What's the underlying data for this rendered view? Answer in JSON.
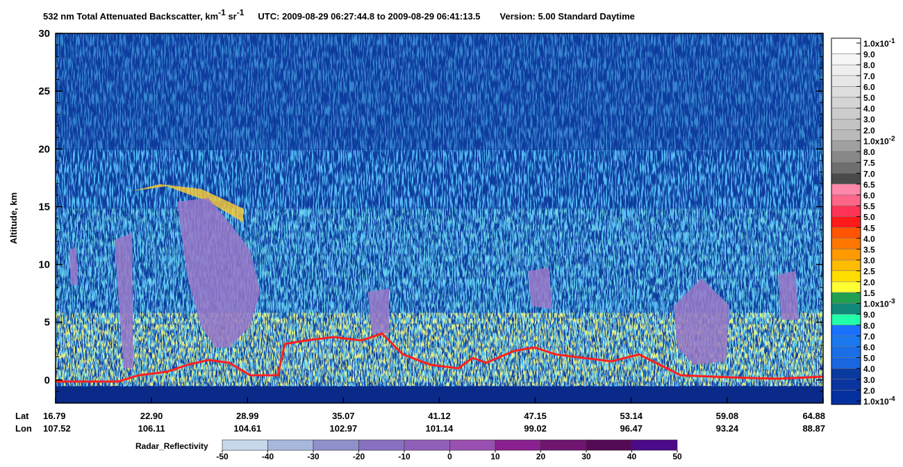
{
  "chart_data": {
    "type": "heatmap",
    "title": {
      "product": "532 nm Total Attenuated Backscatter, km",
      "unit_exp1": "-1",
      "unit2": " sr",
      "unit_exp2": "-1",
      "utc": "UTC:  2009-08-29 06:27:44.8  to  2009-08-29 06:41:13.5",
      "version": "Version: 5.00  Standard  Daytime"
    },
    "y_label": "Altitude, km",
    "ylim": [
      -2,
      30
    ],
    "yticks": [
      0,
      5,
      10,
      15,
      20,
      25,
      30
    ],
    "lat_label": "Lat",
    "lon_label": "Lon",
    "lat": [
      "16.79",
      "22.90",
      "28.99",
      "35.07",
      "41.12",
      "47.15",
      "53.14",
      "59.08",
      "64.88"
    ],
    "lon": [
      "107.52",
      "106.11",
      "104.61",
      "102.97",
      "101.14",
      "99.02",
      "96.47",
      "93.24",
      "88.87"
    ],
    "colorbar": {
      "labels": [
        {
          "label": "1.0x10",
          "exp": "-1"
        },
        "9.0",
        "8.0",
        "7.0",
        "6.0",
        "5.0",
        "4.0",
        "3.0",
        "2.0",
        {
          "label": "1.0x10",
          "exp": "-2"
        },
        "8.0",
        "7.5",
        "7.0",
        "6.5",
        "6.0",
        "5.5",
        "5.0",
        "4.5",
        "4.0",
        "3.5",
        "3.0",
        "2.5",
        "2.0",
        "1.5",
        {
          "label": "1.0x10",
          "exp": "-3"
        },
        "9.0",
        "8.0",
        "7.0",
        "6.0",
        "5.0",
        "4.0",
        "3.0",
        "2.0",
        {
          "label": "1.0x10",
          "exp": "-4"
        }
      ],
      "colors": [
        "#ffffff",
        "#f6f6f6",
        "#eeeeee",
        "#e6e6e6",
        "#dddddd",
        "#d4d4d4",
        "#cccccc",
        "#c3c3c3",
        "#bababa",
        "#a0a0a0",
        "#888888",
        "#6e6e6e",
        "#4a4a4a",
        "#ff88aa",
        "#ff6688",
        "#ff3355",
        "#ff1a1a",
        "#ff5500",
        "#ff7700",
        "#ff9900",
        "#ffbb00",
        "#ffdd00",
        "#ffff33",
        "#22a050",
        "#11887a",
        "#22ffaa",
        "#1a70ff",
        "#1a78f0",
        "#1a6ee8",
        "#1866e0",
        "#0a3aa0",
        "#0a35a0",
        "#0530a0"
      ]
    },
    "radar_colorbar": {
      "title": "Radar_Reflectivity",
      "ticks": [
        -50,
        -40,
        -30,
        -20,
        -10,
        0,
        10,
        20,
        30,
        40,
        50
      ],
      "colors": [
        "#c8d8ea",
        "#a8b8dc",
        "#9090cc",
        "#8870c0",
        "#9060b8",
        "#9a50b0",
        "#8a2090",
        "#701570",
        "#550a55",
        "#4a0a8a"
      ]
    }
  }
}
